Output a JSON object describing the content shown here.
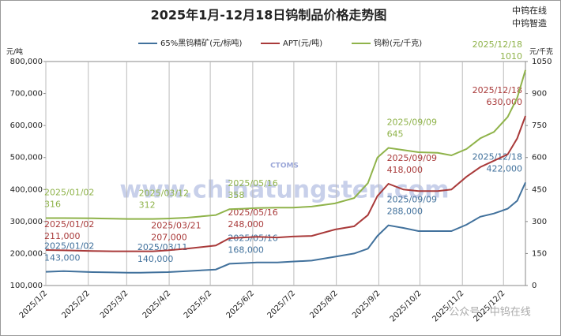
{
  "chart_data": {
    "type": "line",
    "title": "2025年1月-12月18日钨制品价格走势图",
    "brand": [
      "中钨在线",
      "中钨智造"
    ],
    "watermark": [
      "www.chinatungsten.com",
      "CTOMS",
      "公众号 · 中钨在线"
    ],
    "y_unit": "元/吨",
    "y2_unit": "元/千克",
    "x": [
      "2025/1/2",
      "2025/1/15",
      "2025/2/5",
      "2025/2/20",
      "2025/3/3",
      "2025/3/11",
      "2025/3/12",
      "2025/3/21",
      "2025/4/1",
      "2025/4/15",
      "2025/5/6",
      "2025/5/16",
      "2025/5/26",
      "2025/6/5",
      "2025/6/20",
      "2025/7/1",
      "2025/7/15",
      "2025/8/1",
      "2025/8/15",
      "2025/8/25",
      "2025/9/1",
      "2025/9/9",
      "2025/9/20",
      "2025/10/1",
      "2025/10/15",
      "2025/10/25",
      "2025/11/5",
      "2025/11/15",
      "2025/11/25",
      "2025/12/5",
      "2025/12/12",
      "2025/12/18"
    ],
    "xlim": [
      "2025/1/2",
      "2025/12/18"
    ],
    "xticks": [
      "2025/1/2",
      "2025/2/2",
      "2025/3/2",
      "2025/4/2",
      "2025/5/2",
      "2025/6/2",
      "2025/7/2",
      "2025/8/2",
      "2025/9/2",
      "2025/10/2",
      "2025/11/2",
      "2025/12/2"
    ],
    "xgrid": true,
    "ylim": [
      100000,
      800000
    ],
    "yticks": [
      {
        "value": 100000,
        "label": "100,000"
      },
      {
        "value": 200000,
        "label": "200,000"
      },
      {
        "value": 300000,
        "label": "300,000"
      },
      {
        "value": 400000,
        "label": "400,000"
      },
      {
        "value": 500000,
        "label": "500,000"
      },
      {
        "value": 600000,
        "label": "600,000"
      },
      {
        "value": 700000,
        "label": "700,000"
      },
      {
        "value": 800000,
        "label": "800,000"
      }
    ],
    "y2lim": [
      0,
      1050
    ],
    "y2ticks": [
      0,
      150,
      300,
      450,
      600,
      750,
      900,
      1050
    ],
    "legend": "top",
    "series": [
      {
        "name": "65%黑钨精矿(元/标吨)",
        "color": "#41719c",
        "values": [
          143000,
          145000,
          142000,
          141000,
          140000,
          140000,
          140000,
          141000,
          142000,
          145000,
          150000,
          168000,
          170000,
          172000,
          172000,
          175000,
          178000,
          190000,
          200000,
          215000,
          255000,
          288000,
          280000,
          270000,
          270000,
          270000,
          290000,
          315000,
          325000,
          340000,
          365000,
          422000
        ],
        "value_labels": [
          "143,000",
          null,
          null,
          null,
          null,
          "140,000",
          null,
          null,
          null,
          null,
          null,
          "168,000",
          null,
          null,
          null,
          null,
          null,
          null,
          null,
          null,
          null,
          "288,000",
          null,
          null,
          null,
          null,
          null,
          null,
          null,
          null,
          null,
          "422,000"
        ],
        "date_labels": [
          "2025/01/02",
          null,
          null,
          null,
          null,
          "2025/03/11",
          null,
          null,
          null,
          null,
          null,
          "2025/05/16",
          null,
          null,
          null,
          null,
          null,
          null,
          null,
          null,
          null,
          "2025/09/09",
          null,
          null,
          null,
          null,
          null,
          null,
          null,
          null,
          null,
          "2025/12/18"
        ]
      },
      {
        "name": "APT(元/吨)",
        "color": "#a93a3a",
        "values": [
          211000,
          210000,
          208000,
          207000,
          207000,
          207000,
          207000,
          207000,
          210000,
          215000,
          225000,
          248000,
          250000,
          252000,
          250000,
          253000,
          255000,
          275000,
          285000,
          320000,
          380000,
          418000,
          400000,
          395000,
          395000,
          400000,
          440000,
          470000,
          490000,
          510000,
          560000,
          630000
        ],
        "value_labels": [
          "211,000",
          null,
          null,
          null,
          null,
          null,
          null,
          "207,000",
          null,
          null,
          null,
          "248,000",
          null,
          null,
          null,
          null,
          null,
          null,
          null,
          null,
          null,
          "418,000",
          null,
          null,
          null,
          null,
          null,
          null,
          null,
          null,
          null,
          "630,000"
        ],
        "date_labels": [
          "2025/01/02",
          null,
          null,
          null,
          null,
          null,
          null,
          "2025/03/21",
          null,
          null,
          null,
          "2025/05/16",
          null,
          null,
          null,
          null,
          null,
          null,
          null,
          null,
          null,
          "2025/09/09",
          null,
          null,
          null,
          null,
          null,
          null,
          null,
          null,
          null,
          "2025/12/18"
        ]
      },
      {
        "name": "钨粉(元/千克)",
        "color": "#8fb34a",
        "axis": "y2",
        "values": [
          316,
          316,
          315,
          313,
          312,
          312,
          312,
          312,
          314,
          318,
          330,
          358,
          360,
          363,
          365,
          365,
          370,
          385,
          410,
          480,
          600,
          645,
          635,
          625,
          622,
          610,
          640,
          690,
          720,
          790,
          880,
          1010
        ],
        "value_labels": [
          "316",
          null,
          null,
          null,
          null,
          null,
          "312",
          null,
          null,
          null,
          null,
          "358",
          null,
          null,
          null,
          null,
          null,
          null,
          null,
          null,
          null,
          "645",
          null,
          null,
          null,
          null,
          null,
          null,
          null,
          null,
          null,
          "1010"
        ],
        "date_labels": [
          "2025/01/02",
          null,
          null,
          null,
          null,
          null,
          "2025/03/12",
          null,
          null,
          null,
          null,
          "2025/05/16",
          null,
          null,
          null,
          null,
          null,
          null,
          null,
          null,
          null,
          "2025/09/09",
          null,
          null,
          null,
          null,
          null,
          null,
          null,
          null,
          null,
          "2025/12/18"
        ]
      }
    ]
  }
}
